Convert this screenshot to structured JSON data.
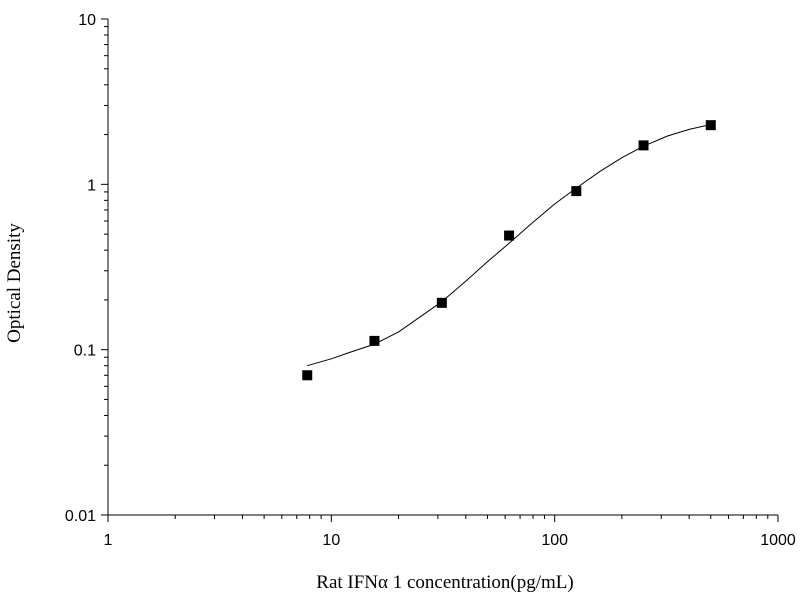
{
  "chart_data": {
    "type": "scatter",
    "title": "",
    "xlabel": "Rat IFNα  1 concentration(pg/mL)",
    "ylabel": "Optical Density",
    "xscale": "log",
    "yscale": "log",
    "xlim": [
      1,
      1000
    ],
    "ylim": [
      0.01,
      10
    ],
    "x_tick_labels": [
      "1",
      "10",
      "100",
      "1000"
    ],
    "y_tick_labels": [
      "0.01",
      "0.1",
      "1",
      "10"
    ],
    "grid": false,
    "legend": "none",
    "series": [
      {
        "marker": "square",
        "x": [
          7.8,
          15.6,
          31.25,
          62.5,
          125,
          250,
          500
        ],
        "y": [
          0.07,
          0.113,
          0.192,
          0.49,
          0.91,
          1.72,
          2.28
        ]
      }
    ],
    "fit_curve": {
      "x": [
        7.8,
        10,
        12,
        15.6,
        20,
        25,
        31.25,
        40,
        50,
        62.5,
        80,
        100,
        125,
        160,
        200,
        250,
        320,
        400,
        500
      ],
      "y": [
        0.08,
        0.088,
        0.096,
        0.108,
        0.128,
        0.158,
        0.195,
        0.26,
        0.34,
        0.44,
        0.59,
        0.76,
        0.95,
        1.2,
        1.45,
        1.7,
        1.96,
        2.15,
        2.3
      ]
    },
    "colors": {
      "marker": "#000000",
      "curve": "#000000",
      "axis": "#000000"
    }
  }
}
